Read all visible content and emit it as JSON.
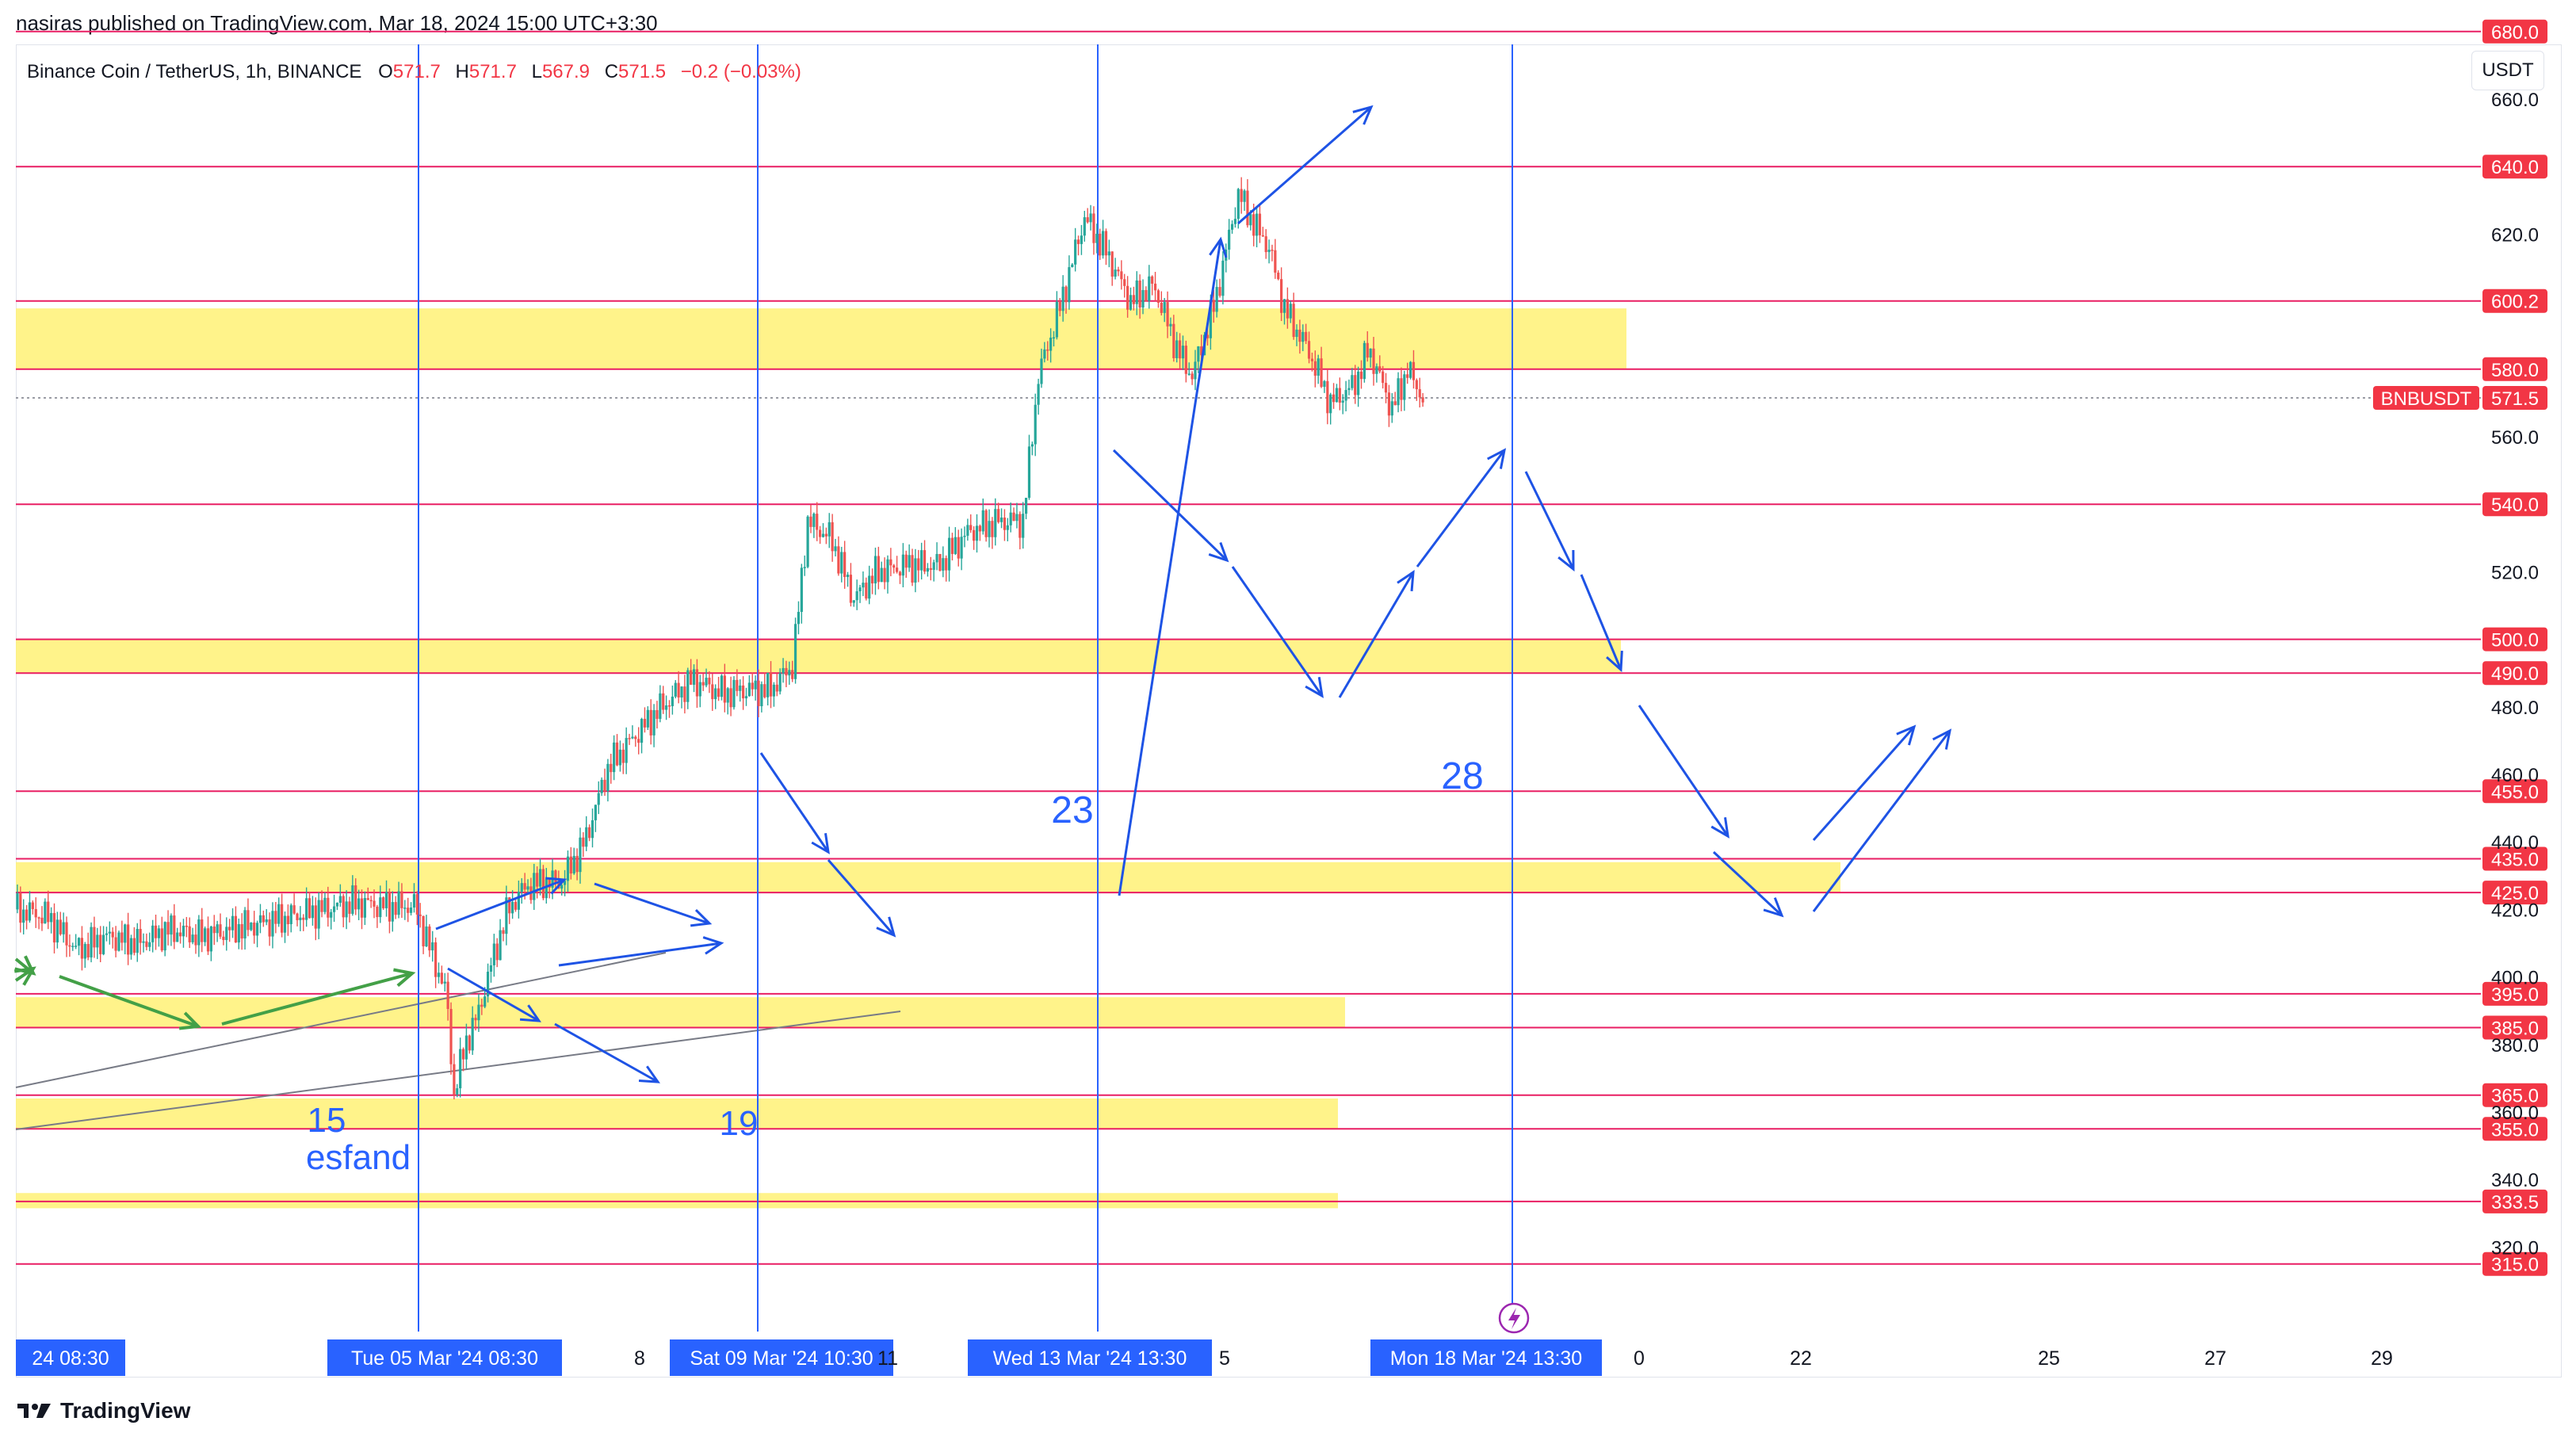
{
  "header": {
    "published": "nasiras published on TradingView.com, Mar 18, 2024 15:00 UTC+3:30"
  },
  "legend": {
    "symbol": "Binance Coin / TetherUS, 1h, BINANCE",
    "o_label": "O",
    "o_value": "571.7",
    "h_label": "H",
    "h_value": "571.7",
    "l_label": "L",
    "l_value": "567.9",
    "c_label": "C",
    "c_value": "571.5",
    "change": "−0.2 (−0.03%)"
  },
  "currency_button": "USDT",
  "footer": {
    "brand": "TradingView"
  },
  "colors": {
    "level_line": "#e91e63",
    "zone_fill": "#fff176",
    "vline": "#2962ff",
    "arrow_blue": "#1e53e5",
    "arrow_green": "#43a047",
    "up_candle": "#26a69a",
    "down_candle": "#ef5350",
    "price_tag": "#f23645"
  },
  "chart_data": {
    "type": "candlestick",
    "symbol": "BNBUSDT",
    "timeframe": "1h",
    "ylim": [
      310,
      690
    ],
    "y_ticks": [
      320.0,
      340.0,
      360.0,
      380.0,
      400.0,
      420.0,
      440.0,
      460.0,
      480.0,
      520.0,
      560.0,
      620.0,
      660.0
    ],
    "x_ticks": [
      {
        "label": "24  08:30",
        "highlighted": true
      },
      {
        "label": "Tue 05 Mar '24   08:30",
        "highlighted": true
      },
      {
        "label": "8",
        "highlighted": false
      },
      {
        "label": "Sat 09 Mar '24   10:30",
        "highlighted": true
      },
      {
        "label": "11",
        "highlighted": false
      },
      {
        "label": "Wed 13 Mar '24   13:30",
        "highlighted": true
      },
      {
        "label": "5",
        "highlighted": false
      },
      {
        "label": "Mon 18 Mar '24   13:30",
        "highlighted": true
      },
      {
        "label": "0",
        "highlighted": false
      },
      {
        "label": "22",
        "highlighted": false
      },
      {
        "label": "25",
        "highlighted": false
      },
      {
        "label": "27",
        "highlighted": false
      },
      {
        "label": "29",
        "highlighted": false
      }
    ],
    "horizontal_levels": [
      680.0,
      640.0,
      600.2,
      580.0,
      540.0,
      500.0,
      490.0,
      455.0,
      435.0,
      425.0,
      395.0,
      385.0,
      365.0,
      355.0,
      333.5,
      315.0
    ],
    "level_labels": [
      "680.0",
      "640.0",
      "600.2",
      "580.0",
      "540.0",
      "500.0",
      "490.0",
      "455.0",
      "435.0",
      "425.0",
      "395.0",
      "385.0",
      "365.0",
      "355.0",
      "333.5",
      "315.0"
    ],
    "zones": [
      {
        "from": 580.0,
        "to": 598.0
      },
      {
        "from": 490.0,
        "to": 500.0
      },
      {
        "from": 425.0,
        "to": 434.0
      },
      {
        "from": 385.0,
        "to": 394.0
      },
      {
        "from": 355.0,
        "to": 364.0
      },
      {
        "from": 331.5,
        "to": 336.0
      }
    ],
    "current_price": {
      "symbol_tag": "BNBUSDT",
      "value": "571.5"
    },
    "annotations": [
      "15",
      "esfand",
      "19",
      "23",
      "28"
    ],
    "price_path": [
      [
        0,
        420
      ],
      [
        20,
        418
      ],
      [
        40,
        408
      ],
      [
        60,
        412
      ],
      [
        80,
        410
      ],
      [
        100,
        414
      ],
      [
        120,
        412
      ],
      [
        140,
        414
      ],
      [
        160,
        416
      ],
      [
        180,
        418
      ],
      [
        200,
        420
      ],
      [
        220,
        422
      ],
      [
        240,
        421
      ],
      [
        260,
        421
      ],
      [
        265,
        414
      ],
      [
        280,
        395
      ],
      [
        285,
        365
      ],
      [
        292,
        380
      ],
      [
        300,
        388
      ],
      [
        310,
        405
      ],
      [
        320,
        420
      ],
      [
        330,
        426
      ],
      [
        340,
        428
      ],
      [
        355,
        428
      ],
      [
        370,
        440
      ],
      [
        385,
        462
      ],
      [
        400,
        470
      ],
      [
        420,
        480
      ],
      [
        440,
        488
      ],
      [
        460,
        484
      ],
      [
        475,
        485
      ],
      [
        490,
        485
      ],
      [
        505,
        492
      ],
      [
        515,
        535
      ],
      [
        530,
        530
      ],
      [
        545,
        512
      ],
      [
        560,
        520
      ],
      [
        580,
        522
      ],
      [
        600,
        522
      ],
      [
        620,
        532
      ],
      [
        640,
        535
      ],
      [
        655,
        535
      ],
      [
        665,
        578
      ],
      [
        680,
        600
      ],
      [
        695,
        625
      ],
      [
        710,
        614
      ],
      [
        725,
        600
      ],
      [
        740,
        605
      ],
      [
        755,
        586
      ],
      [
        765,
        578
      ],
      [
        780,
        600
      ],
      [
        795,
        632
      ],
      [
        805,
        623
      ],
      [
        815,
        616
      ],
      [
        825,
        598
      ],
      [
        840,
        586
      ],
      [
        855,
        570
      ],
      [
        870,
        575
      ],
      [
        880,
        586
      ],
      [
        895,
        568
      ],
      [
        905,
        580
      ],
      [
        915,
        571.5
      ]
    ],
    "candle_step": 3.6
  }
}
